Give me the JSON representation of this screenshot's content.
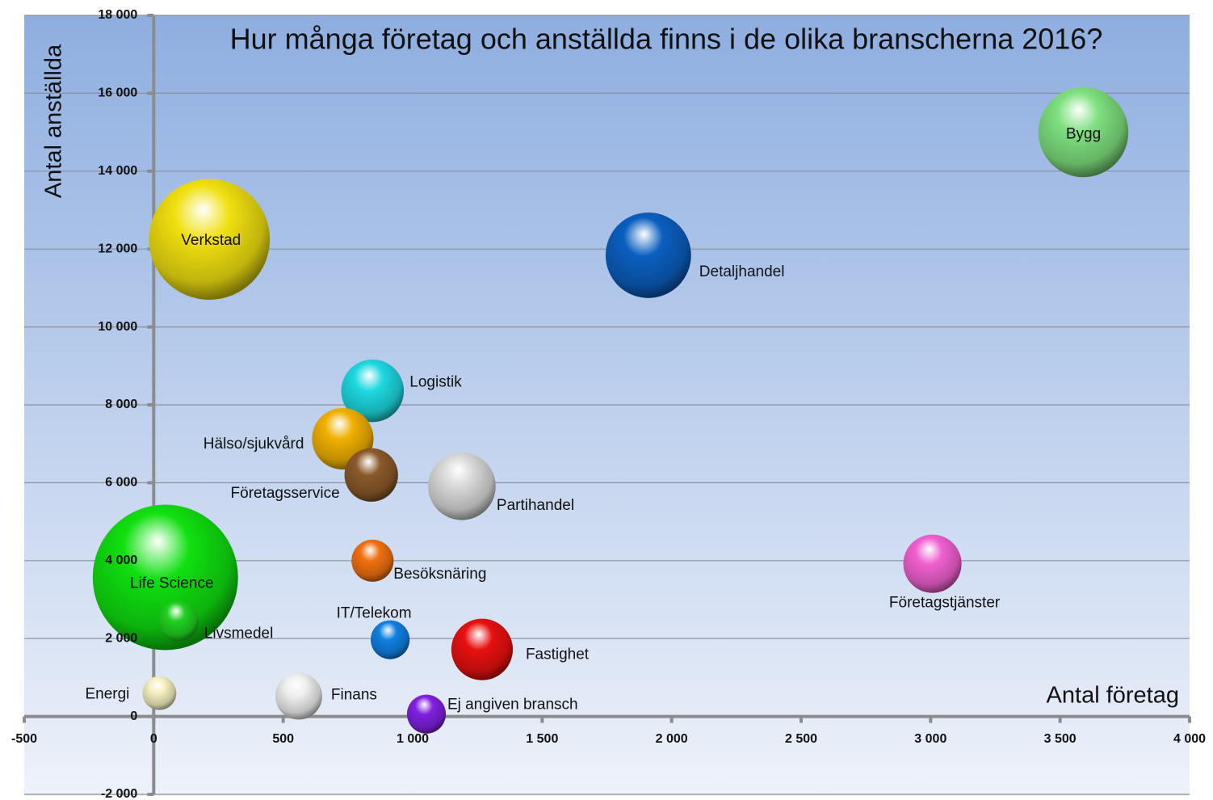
{
  "chart_data": {
    "type": "bubble",
    "title": "Hur många företag och anställda finns i de olika branscherna 2016?",
    "x_label": "Antal företag",
    "y_label": "Antal anställda",
    "xlim": [
      -500,
      4000
    ],
    "ylim": [
      -2000,
      18000
    ],
    "xticks": [
      -500,
      0,
      500,
      {
        "value": 1000,
        "label": "1 000"
      },
      {
        "value": 1500,
        "label": "1 500"
      },
      {
        "value": 2000,
        "label": "2 000"
      },
      {
        "value": 2500,
        "label": "2 500"
      },
      {
        "value": 3000,
        "label": "3 000"
      },
      {
        "value": 3500,
        "label": "3 500"
      },
      {
        "value": 4000,
        "label": "4 000"
      }
    ],
    "yticks": [
      {
        "value": -2000,
        "label": "-2 000"
      },
      0,
      {
        "value": 2000,
        "label": "2 000"
      },
      {
        "value": 4000,
        "label": "4 000"
      },
      {
        "value": 6000,
        "label": "6 000"
      },
      {
        "value": 8000,
        "label": "8 000"
      },
      {
        "value": 10000,
        "label": "10 000"
      },
      {
        "value": 12000,
        "label": "12 000"
      },
      {
        "value": 14000,
        "label": "14 000"
      },
      {
        "value": 16000,
        "label": "16 000"
      },
      {
        "value": 18000,
        "label": "18 000"
      }
    ],
    "grid": true,
    "points": [
      {
        "name": "Bygg",
        "x": 3590,
        "y": 15000,
        "size": 31,
        "color": "#7ee07e"
      },
      {
        "name": "Verkstad",
        "x": 215,
        "y": 12250,
        "size": 56,
        "color": "#f0e010"
      },
      {
        "name": "Detaljhandel",
        "x": 1910,
        "y": 11840,
        "size": 28,
        "color": "#0b5fc0"
      },
      {
        "name": "Logistik",
        "x": 845,
        "y": 8360,
        "size": 15,
        "color": "#1ed8e0"
      },
      {
        "name": "Hälso/sjukvård",
        "x": 730,
        "y": 7130,
        "size": 14.5,
        "color": "#f0b000"
      },
      {
        "name": "Företagsservice",
        "x": 840,
        "y": 6200,
        "size": 11,
        "color": "#8a5a2a"
      },
      {
        "name": "Partihandel",
        "x": 1190,
        "y": 5910,
        "size": 17.5,
        "color": "#d8d8d8"
      },
      {
        "name": "Life Science",
        "x": 45,
        "y": 3570,
        "size": 81,
        "color": "#10e010"
      },
      {
        "name": "Besöksnäring",
        "x": 845,
        "y": 4000,
        "size": 6.8,
        "color": "#f07010"
      },
      {
        "name": "Företagstjänster",
        "x": 3007,
        "y": 3920,
        "size": 13,
        "color": "#f060d0"
      },
      {
        "name": "Livsmedel",
        "x": 95,
        "y": 2450,
        "size": 6.3,
        "color": "#20d020"
      },
      {
        "name": "IT/Telekom",
        "x": 913,
        "y": 1970,
        "size": 5.8,
        "color": "#1080e0"
      },
      {
        "name": "Fastighet",
        "x": 1268,
        "y": 1720,
        "size": 14.5,
        "color": "#e81010"
      },
      {
        "name": "Energi",
        "x": 22,
        "y": 600,
        "size": 4.4,
        "color": "#f4f0c0"
      },
      {
        "name": "Finans",
        "x": 560,
        "y": 520,
        "size": 8.4,
        "color": "#eeeeee"
      },
      {
        "name": "Ej angiven bransch",
        "x": 1053,
        "y": 60,
        "size": 5.8,
        "color": "#8020e0"
      }
    ]
  }
}
